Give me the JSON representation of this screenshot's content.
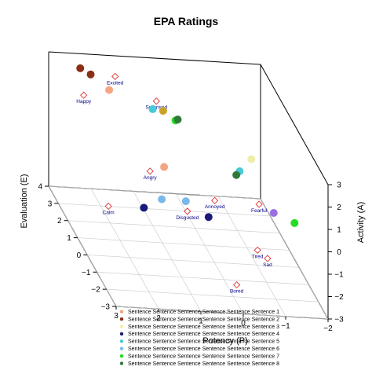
{
  "chart_data": {
    "type": "scatter",
    "title": "EPA Ratings",
    "xlabel": "Potency (P)",
    "ylabel": "Evaluation (E)",
    "zlabel": "Activity (A)",
    "xlim": [
      3,
      -2
    ],
    "ylim": [
      -3,
      4
    ],
    "zlim": [
      -3,
      3
    ],
    "x_ticks": [
      "3",
      "2",
      "1",
      "0",
      "−1",
      "−2"
    ],
    "y_ticks": [
      "−3",
      "−2",
      "−1",
      "0",
      "1",
      "2",
      "3",
      "4"
    ],
    "z_ticks": [
      "−3",
      "−2",
      "−1",
      "0",
      "1",
      "2",
      "3"
    ],
    "grid": true,
    "legend_placement": "bottom",
    "reference_points": [
      {
        "label": "Excited",
        "p": 1.5,
        "e": 3.7,
        "a": 2.3
      },
      {
        "label": "Surprised",
        "p": 0.8,
        "e": 2.5,
        "a": 2.2
      },
      {
        "label": "Happy",
        "p": 2.4,
        "e": 3.0,
        "a": 1.9
      },
      {
        "label": "Angry",
        "p": 1.7,
        "e": -0.8,
        "a": 1.5
      },
      {
        "label": "Calm",
        "p": 2.0,
        "e": 2.2,
        "a": -2.4
      },
      {
        "label": "Annoyed",
        "p": 0.4,
        "e": -1.8,
        "a": 1.1
      },
      {
        "label": "Disgusted",
        "p": 1.0,
        "e": -1.6,
        "a": 0.4
      },
      {
        "label": "Fearful",
        "p": -0.6,
        "e": -2.0,
        "a": 1.2
      },
      {
        "label": "Tired",
        "p": -0.7,
        "e": -1.4,
        "a": -1.3
      },
      {
        "label": "Bored",
        "p": -0.3,
        "e": -1.0,
        "a": -3.2
      },
      {
        "label": "Sad",
        "p": -0.8,
        "e": -2.0,
        "a": -1.2
      }
    ],
    "series": [
      {
        "name": "Sentence Sentence Sentence Sentence Sentence Sentence 1",
        "color": "#f4a582",
        "points": [
          {
            "p": 1.8,
            "e": 3.0,
            "a": 2.2
          },
          {
            "p": 1.3,
            "e": -0.5,
            "a": 1.5
          }
        ]
      },
      {
        "name": "Sentence Sentence Sentence Sentence Sentence Sentence 2",
        "color": "#8b2e16",
        "points": [
          {
            "p": 2.3,
            "e": 3.8,
            "a": 2.5
          },
          {
            "p": 2.1,
            "e": 3.6,
            "a": 2.4
          }
        ]
      },
      {
        "name": "Sentence Sentence Sentence Sentence Sentence Sentence 3",
        "color": "#eeeeaa",
        "points": [
          {
            "p": -0.6,
            "e": -1.2,
            "a": 2.6
          }
        ]
      },
      {
        "name": "Sentence Sentence Sentence Sentence Sentence Sentence 4",
        "color": "#1a1a7a",
        "points": [
          {
            "p": 1.8,
            "e": -0.6,
            "a": -0.3
          },
          {
            "p": 0.5,
            "e": -1.6,
            "a": 0.2
          }
        ]
      },
      {
        "name": "Sentence Sentence Sentence Sentence Sentence Sentence 5",
        "color": "#48c9d8",
        "points": [
          {
            "p": 1.0,
            "e": 2.0,
            "a": 2.2
          },
          {
            "p": -0.3,
            "e": -1.3,
            "a": 2.1
          }
        ]
      },
      {
        "name": "Sentence Sentence Sentence Sentence Sentence Sentence 6",
        "color": "#7ab8e8",
        "points": [
          {
            "p": 1.4,
            "e": -0.7,
            "a": 0.2
          },
          {
            "p": 0.9,
            "e": -1.0,
            "a": 0.4
          }
        ]
      },
      {
        "name": "Sentence Sentence Sentence Sentence Sentence Sentence 7",
        "color": "#22dd22",
        "points": [
          {
            "p": 0.6,
            "e": 1.4,
            "a": 2.2
          },
          {
            "p": -1.3,
            "e": -2.6,
            "a": 0.9
          }
        ]
      },
      {
        "name": "Sentence Sentence Sentence Sentence Sentence Sentence 8",
        "color": "#2f7a3a",
        "points": [
          {
            "p": 0.5,
            "e": 1.6,
            "a": 2.1
          },
          {
            "p": -0.2,
            "e": -1.4,
            "a": 2.0
          }
        ]
      },
      {
        "name": "",
        "color": "#c9a227",
        "points": [
          {
            "p": 0.8,
            "e": 1.8,
            "a": 2.3
          }
        ]
      },
      {
        "name": "",
        "color": "#9b70e0",
        "points": [
          {
            "p": -0.9,
            "e": -2.2,
            "a": 1.0
          }
        ]
      }
    ]
  }
}
